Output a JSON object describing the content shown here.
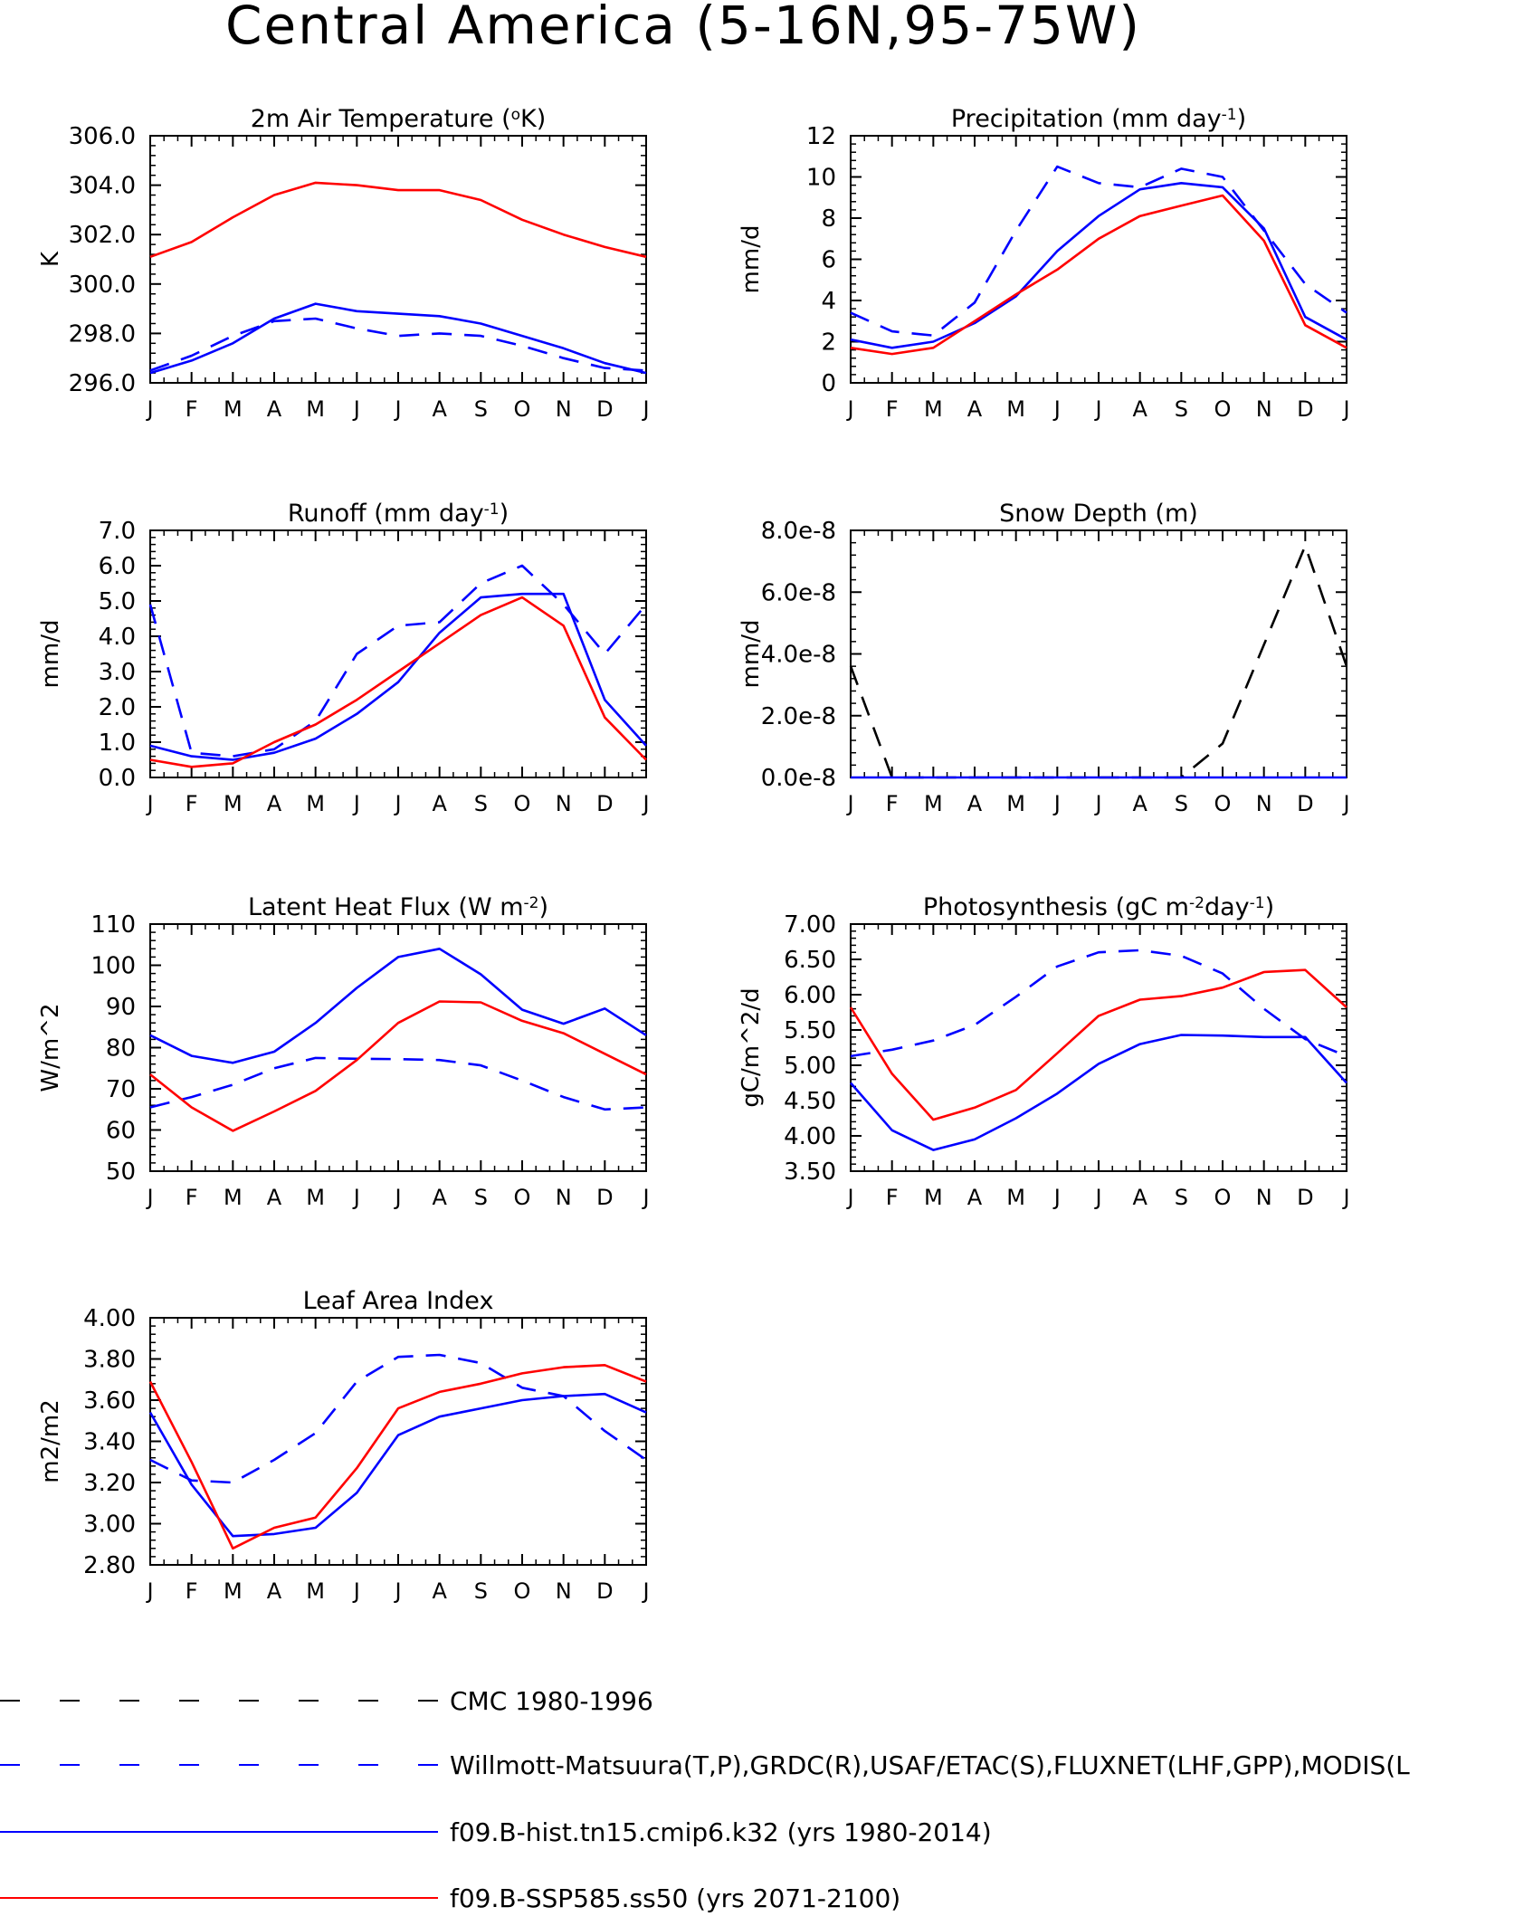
{
  "page_title": "Central America (5-16N,95-75W)",
  "months": [
    "J",
    "F",
    "M",
    "A",
    "M",
    "J",
    "J",
    "A",
    "S",
    "O",
    "N",
    "D",
    "J"
  ],
  "colors": {
    "cmc": "#000000",
    "obs": "#0000ff",
    "hist": "#0000ff",
    "ssp": "#ff0000"
  },
  "legend": [
    {
      "key": "cmc",
      "label": "CMC 1980-1996",
      "color": "#000000",
      "style": "dashed"
    },
    {
      "key": "obs",
      "label": "Willmott-Matsuura(T,P),GRDC(R),USAF/ETAC(S),FLUXNET(LHF,GPP),MODIS(L",
      "color": "#0000ff",
      "style": "dashed"
    },
    {
      "key": "hist",
      "label": "f09.B-hist.tn15.cmip6.k32 (yrs 1980-2014)",
      "color": "#0000ff",
      "style": "solid"
    },
    {
      "key": "ssp",
      "label": "f09.B-SSP585.ss50 (yrs 2071-2100)",
      "color": "#ff0000",
      "style": "solid"
    }
  ],
  "chart_data": [
    {
      "type": "line",
      "title": "2m Air Temperature (°K)",
      "title_parts": [
        [
          "2m Air Temperature (",
          ""
        ],
        [
          "o",
          "sup"
        ],
        [
          "K)",
          ""
        ]
      ],
      "ylabel": "K",
      "ylim": [
        296,
        306
      ],
      "yticks": [
        296,
        298,
        300,
        302,
        304,
        306
      ],
      "ytick_labels": [
        "296.0",
        "298.0",
        "300.0",
        "302.0",
        "304.0",
        "306.0"
      ],
      "x": [
        "J",
        "F",
        "M",
        "A",
        "M",
        "J",
        "J",
        "A",
        "S",
        "O",
        "N",
        "D",
        "J"
      ],
      "series": [
        {
          "key": "obs",
          "style": "dashed",
          "values": [
            296.5,
            297.1,
            297.9,
            298.5,
            298.6,
            298.2,
            297.9,
            298.0,
            297.9,
            297.5,
            297.0,
            296.6,
            296.5
          ]
        },
        {
          "key": "hist",
          "style": "solid",
          "values": [
            296.4,
            296.9,
            297.6,
            298.6,
            299.2,
            298.9,
            298.8,
            298.7,
            298.4,
            297.9,
            297.4,
            296.8,
            296.4
          ]
        },
        {
          "key": "ssp",
          "style": "solid",
          "values": [
            301.1,
            301.7,
            302.7,
            303.6,
            304.1,
            304.0,
            303.8,
            303.8,
            303.4,
            302.6,
            302.0,
            301.5,
            301.1
          ]
        }
      ]
    },
    {
      "type": "line",
      "title": "Precipitation (mm day-1)",
      "title_parts": [
        [
          "Precipitation (mm day",
          ""
        ],
        [
          "-1",
          "sup"
        ],
        [
          ")",
          ""
        ]
      ],
      "ylabel": "mm/d",
      "ylim": [
        0,
        12
      ],
      "yticks": [
        0,
        2,
        4,
        6,
        8,
        10,
        12
      ],
      "ytick_labels": [
        "0",
        "2",
        "4",
        "6",
        "8",
        "10",
        "12"
      ],
      "x": [
        "J",
        "F",
        "M",
        "A",
        "M",
        "J",
        "J",
        "A",
        "S",
        "O",
        "N",
        "D",
        "J"
      ],
      "series": [
        {
          "key": "obs",
          "style": "dashed",
          "values": [
            3.4,
            2.5,
            2.3,
            3.9,
            7.4,
            10.5,
            9.7,
            9.5,
            10.4,
            10.0,
            7.4,
            4.8,
            3.4
          ]
        },
        {
          "key": "hist",
          "style": "solid",
          "values": [
            2.1,
            1.7,
            2.0,
            2.9,
            4.2,
            6.4,
            8.1,
            9.4,
            9.7,
            9.5,
            7.5,
            3.2,
            2.1
          ]
        },
        {
          "key": "ssp",
          "style": "solid",
          "values": [
            1.7,
            1.4,
            1.7,
            3.0,
            4.3,
            5.5,
            7.0,
            8.1,
            8.6,
            9.1,
            6.9,
            2.8,
            1.7
          ]
        }
      ]
    },
    {
      "type": "line",
      "title": "Runoff (mm day-1)",
      "title_parts": [
        [
          "Runoff (mm day",
          ""
        ],
        [
          "-1",
          "sup"
        ],
        [
          ")",
          ""
        ]
      ],
      "ylabel": "mm/d",
      "ylim": [
        0,
        7
      ],
      "yticks": [
        0,
        1,
        2,
        3,
        4,
        5,
        6,
        7
      ],
      "ytick_labels": [
        "0.0",
        "1.0",
        "2.0",
        "3.0",
        "4.0",
        "5.0",
        "6.0",
        "7.0"
      ],
      "x": [
        "J",
        "F",
        "M",
        "A",
        "M",
        "J",
        "J",
        "A",
        "S",
        "O",
        "N",
        "D",
        "J"
      ],
      "series": [
        {
          "key": "obs",
          "style": "dashed",
          "values": [
            4.9,
            0.7,
            0.6,
            0.8,
            1.6,
            3.5,
            4.3,
            4.4,
            5.5,
            6.0,
            4.9,
            3.5,
            4.9
          ]
        },
        {
          "key": "hist",
          "style": "solid",
          "values": [
            0.9,
            0.6,
            0.5,
            0.7,
            1.1,
            1.8,
            2.7,
            4.1,
            5.1,
            5.2,
            5.2,
            2.2,
            0.9
          ]
        },
        {
          "key": "ssp",
          "style": "solid",
          "values": [
            0.5,
            0.3,
            0.4,
            1.0,
            1.5,
            2.2,
            3.0,
            3.8,
            4.6,
            5.1,
            4.3,
            1.7,
            0.5
          ]
        }
      ]
    },
    {
      "type": "line",
      "title": "Snow Depth (m)",
      "title_parts": [
        [
          "Snow Depth (m)",
          ""
        ]
      ],
      "ylabel": "mm/d",
      "ylim": [
        0,
        8e-08
      ],
      "yticks": [
        0,
        2e-08,
        4e-08,
        6e-08,
        8e-08
      ],
      "ytick_labels": [
        "0.0e-8",
        "2.0e-8",
        "4.0e-8",
        "6.0e-8",
        "8.0e-8"
      ],
      "x": [
        "J",
        "F",
        "M",
        "A",
        "M",
        "J",
        "J",
        "A",
        "S",
        "O",
        "N",
        "D",
        "J"
      ],
      "series": [
        {
          "key": "cmc",
          "style": "dashed",
          "values": [
            3.6e-08,
            0,
            0,
            0,
            0,
            0,
            0,
            0,
            0,
            1.1e-08,
            4.3e-08,
            7.5e-08,
            3.6e-08
          ]
        },
        {
          "key": "hist",
          "style": "solid",
          "values": [
            0,
            0,
            0,
            0,
            0,
            0,
            0,
            0,
            0,
            0,
            0,
            0,
            0
          ]
        }
      ]
    },
    {
      "type": "line",
      "title": "Latent Heat Flux (W m-2)",
      "title_parts": [
        [
          "Latent Heat Flux (W m",
          ""
        ],
        [
          "-2",
          "sup"
        ],
        [
          ")",
          ""
        ]
      ],
      "ylabel": "W/m^2",
      "ylim": [
        50,
        110
      ],
      "yticks": [
        50,
        60,
        70,
        80,
        90,
        100,
        110
      ],
      "ytick_labels": [
        "50",
        "60",
        "70",
        "80",
        "90",
        "100",
        "110"
      ],
      "x": [
        "J",
        "F",
        "M",
        "A",
        "M",
        "J",
        "J",
        "A",
        "S",
        "O",
        "N",
        "D",
        "J"
      ],
      "series": [
        {
          "key": "obs",
          "style": "dashed",
          "values": [
            65.5,
            68.0,
            71.0,
            75.0,
            77.5,
            77.3,
            77.2,
            77.0,
            75.7,
            72.0,
            68.0,
            65.0,
            65.5
          ]
        },
        {
          "key": "hist",
          "style": "solid",
          "values": [
            83.0,
            78.0,
            76.3,
            79.0,
            86.0,
            94.5,
            102.0,
            104.0,
            97.8,
            89.2,
            85.8,
            89.5,
            83.0
          ]
        },
        {
          "key": "ssp",
          "style": "solid",
          "values": [
            73.5,
            65.5,
            59.8,
            64.5,
            69.5,
            77.0,
            86.0,
            91.2,
            91.0,
            86.5,
            83.5,
            78.5,
            73.5
          ]
        }
      ]
    },
    {
      "type": "line",
      "title": "Photosynthesis (gC m-2day-1)",
      "title_parts": [
        [
          "Photosynthesis (gC m",
          ""
        ],
        [
          "-2",
          "sup"
        ],
        [
          "day",
          ""
        ],
        [
          "-1",
          "sup"
        ],
        [
          ")",
          ""
        ]
      ],
      "ylabel": "gC/m^2/d",
      "ylim": [
        3.5,
        7.0
      ],
      "yticks": [
        3.5,
        4.0,
        4.5,
        5.0,
        5.5,
        6.0,
        6.5,
        7.0
      ],
      "ytick_labels": [
        "3.50",
        "4.00",
        "4.50",
        "5.00",
        "5.50",
        "6.00",
        "6.50",
        "7.00"
      ],
      "x": [
        "J",
        "F",
        "M",
        "A",
        "M",
        "J",
        "J",
        "A",
        "S",
        "O",
        "N",
        "D",
        "J"
      ],
      "series": [
        {
          "key": "obs",
          "style": "dashed",
          "values": [
            5.13,
            5.22,
            5.35,
            5.57,
            5.97,
            6.4,
            6.6,
            6.63,
            6.55,
            6.3,
            5.8,
            5.37,
            5.13
          ]
        },
        {
          "key": "hist",
          "style": "solid",
          "values": [
            4.75,
            4.08,
            3.8,
            3.95,
            4.25,
            4.6,
            5.02,
            5.3,
            5.43,
            5.42,
            5.4,
            5.4,
            4.75
          ]
        },
        {
          "key": "ssp",
          "style": "solid",
          "values": [
            5.82,
            4.88,
            4.23,
            4.4,
            4.65,
            5.17,
            5.7,
            5.93,
            5.98,
            6.1,
            6.32,
            6.35,
            5.82
          ]
        }
      ]
    },
    {
      "type": "line",
      "title": "Leaf Area Index",
      "title_parts": [
        [
          "Leaf Area Index",
          ""
        ]
      ],
      "ylabel": "m2/m2",
      "ylim": [
        2.8,
        4.0
      ],
      "yticks": [
        2.8,
        3.0,
        3.2,
        3.4,
        3.6,
        3.8,
        4.0
      ],
      "ytick_labels": [
        "2.80",
        "3.00",
        "3.20",
        "3.40",
        "3.60",
        "3.80",
        "4.00"
      ],
      "x": [
        "J",
        "F",
        "M",
        "A",
        "M",
        "J",
        "J",
        "A",
        "S",
        "O",
        "N",
        "D",
        "J"
      ],
      "series": [
        {
          "key": "obs",
          "style": "dashed",
          "values": [
            3.31,
            3.21,
            3.2,
            3.31,
            3.44,
            3.69,
            3.81,
            3.82,
            3.78,
            3.66,
            3.62,
            3.45,
            3.31
          ]
        },
        {
          "key": "hist",
          "style": "solid",
          "values": [
            3.54,
            3.19,
            2.94,
            2.95,
            2.98,
            3.15,
            3.43,
            3.52,
            3.56,
            3.6,
            3.62,
            3.63,
            3.54
          ]
        },
        {
          "key": "ssp",
          "style": "solid",
          "values": [
            3.69,
            3.3,
            2.88,
            2.98,
            3.03,
            3.27,
            3.56,
            3.64,
            3.68,
            3.73,
            3.76,
            3.77,
            3.69
          ]
        }
      ]
    }
  ]
}
